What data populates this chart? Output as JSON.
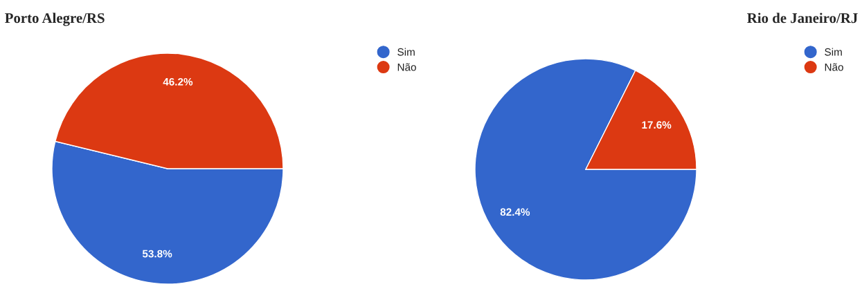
{
  "chart_data": [
    {
      "type": "pie",
      "title": "Porto Alegre/RS",
      "categories": [
        "Sim",
        "Não"
      ],
      "values": [
        53.8,
        46.2
      ],
      "colors": [
        "#3366cc",
        "#dc3912"
      ],
      "value_labels": [
        "53.8%",
        "46.2%"
      ],
      "legend": "top right"
    },
    {
      "type": "pie",
      "title": "Rio de Janeiro/RJ",
      "categories": [
        "Sim",
        "Não"
      ],
      "values": [
        82.4,
        17.6
      ],
      "colors": [
        "#3366cc",
        "#dc3912"
      ],
      "value_labels": [
        "82.4%",
        "17.6%"
      ],
      "legend": "top right"
    }
  ]
}
